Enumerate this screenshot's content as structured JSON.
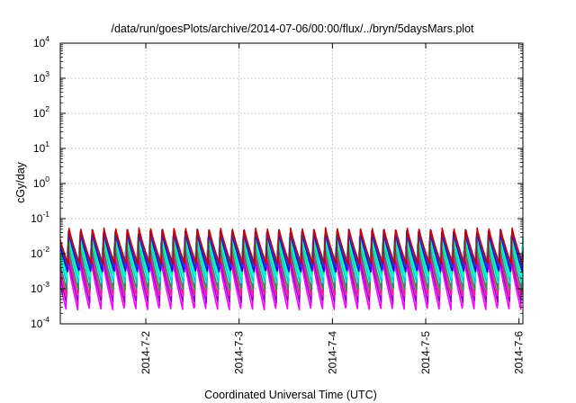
{
  "chart_data": {
    "type": "line",
    "title": "/data/run/goesPlots/archive/2014-07-06/00:00/flux/../bryn/5daysMars.plot",
    "xlabel": "Coordinated Universal Time (UTC)",
    "ylabel": "cGy/day",
    "yscale": "log",
    "ylim": [
      0.0001,
      10000
    ],
    "xlim": [
      "2014-07-01 02:00",
      "2014-07-06 01:00"
    ],
    "yticks": [
      {
        "base": "10",
        "exp": "-4"
      },
      {
        "base": "10",
        "exp": "-3"
      },
      {
        "base": "10",
        "exp": "-2"
      },
      {
        "base": "10",
        "exp": "-1"
      },
      {
        "base": "10",
        "exp": "0"
      },
      {
        "base": "10",
        "exp": "1"
      },
      {
        "base": "10",
        "exp": "2"
      },
      {
        "base": "10",
        "exp": "3"
      },
      {
        "base": "10",
        "exp": "4"
      }
    ],
    "xticks": [
      "2014-7-2",
      "2014-7-3",
      "2014-7-4",
      "2014-7-5",
      "2014-7-6"
    ],
    "grid": true,
    "legend": "none",
    "pattern": {
      "cycles_per_day": 8,
      "shape": "sawtooth: rapid rise to peak, slow decay to trough"
    },
    "series": [
      {
        "color": "#ff00ff",
        "peak": 0.009,
        "trough": 0.00025
      },
      {
        "color": "#9400d3",
        "peak": 0.012,
        "trough": 0.0004
      },
      {
        "color": "#ff1493",
        "peak": 0.016,
        "trough": 0.0006
      },
      {
        "color": "#2e8b57",
        "peak": 0.02,
        "trough": 0.0009
      },
      {
        "color": "#00ced1",
        "peak": 0.03,
        "trough": 0.0014
      },
      {
        "color": "#00ffff",
        "peak": 0.035,
        "trough": 0.002
      },
      {
        "color": "#00ff7f",
        "peak": 0.028,
        "trough": 0.0025
      },
      {
        "color": "#0000ff",
        "peak": 0.045,
        "trough": 0.003
      },
      {
        "color": "#1e3cc8",
        "peak": 0.05,
        "trough": 0.004
      },
      {
        "color": "#cc0000",
        "peak": 0.055,
        "trough": 0.005
      }
    ]
  }
}
